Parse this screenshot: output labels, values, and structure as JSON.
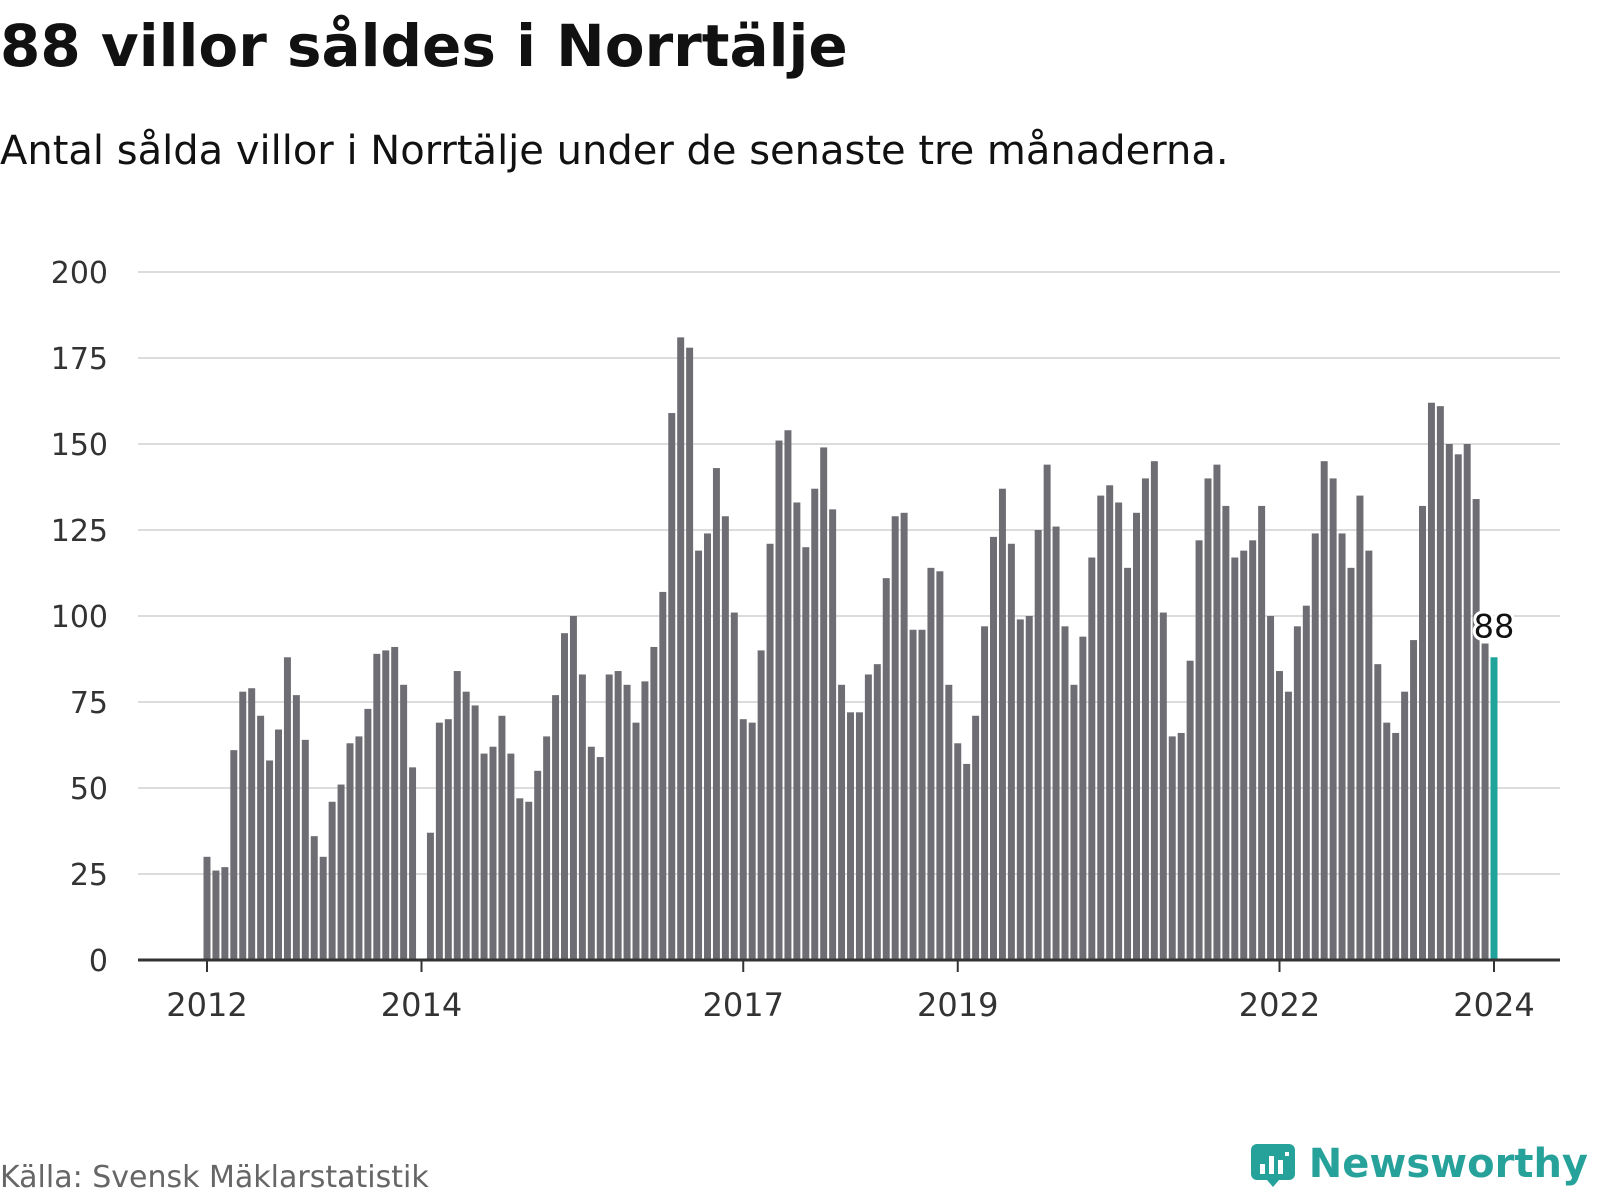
{
  "title": "88 villor såldes i Norrtälje",
  "subtitle": "Antal sålda villor i Norrtälje under de senaste tre månaderna.",
  "source": "Källa: Svensk Mäklarstatistik",
  "brand": "Newsworthy",
  "colors": {
    "bar": "#6d6d73",
    "highlight": "#1fa39a",
    "brand": "#27a29a"
  },
  "chart_data": {
    "type": "bar",
    "title": "88 villor såldes i Norrtälje",
    "ylim": [
      0,
      200
    ],
    "yticks": [
      0,
      25,
      50,
      75,
      100,
      125,
      150,
      175,
      200
    ],
    "xticks": [
      {
        "label": "2012",
        "index": 0
      },
      {
        "label": "2014",
        "index": 24
      },
      {
        "label": "2017",
        "index": 60
      },
      {
        "label": "2019",
        "index": 84
      },
      {
        "label": "2022",
        "index": 120
      },
      {
        "label": "2024",
        "index": 144
      }
    ],
    "highlight_label": "88",
    "values": [
      30,
      26,
      27,
      61,
      78,
      79,
      71,
      58,
      67,
      88,
      77,
      64,
      36,
      30,
      46,
      51,
      63,
      65,
      73,
      89,
      90,
      91,
      80,
      56,
      0,
      37,
      69,
      70,
      84,
      78,
      74,
      60,
      62,
      71,
      60,
      47,
      46,
      55,
      65,
      77,
      95,
      100,
      83,
      62,
      59,
      83,
      84,
      80,
      69,
      81,
      91,
      107,
      159,
      181,
      178,
      119,
      124,
      143,
      129,
      101,
      70,
      69,
      90,
      121,
      151,
      154,
      133,
      120,
      137,
      149,
      131,
      80,
      72,
      72,
      83,
      86,
      111,
      129,
      130,
      96,
      96,
      114,
      113,
      80,
      63,
      57,
      71,
      97,
      123,
      137,
      121,
      99,
      100,
      125,
      144,
      126,
      97,
      80,
      94,
      117,
      135,
      138,
      133,
      114,
      130,
      140,
      145,
      101,
      65,
      66,
      87,
      122,
      140,
      144,
      132,
      117,
      119,
      122,
      132,
      100,
      84,
      78,
      97,
      103,
      124,
      145,
      140,
      124,
      114,
      135,
      119,
      86,
      69,
      66,
      78,
      93,
      132,
      162,
      161,
      150,
      147,
      150,
      134,
      92,
      88
    ]
  }
}
